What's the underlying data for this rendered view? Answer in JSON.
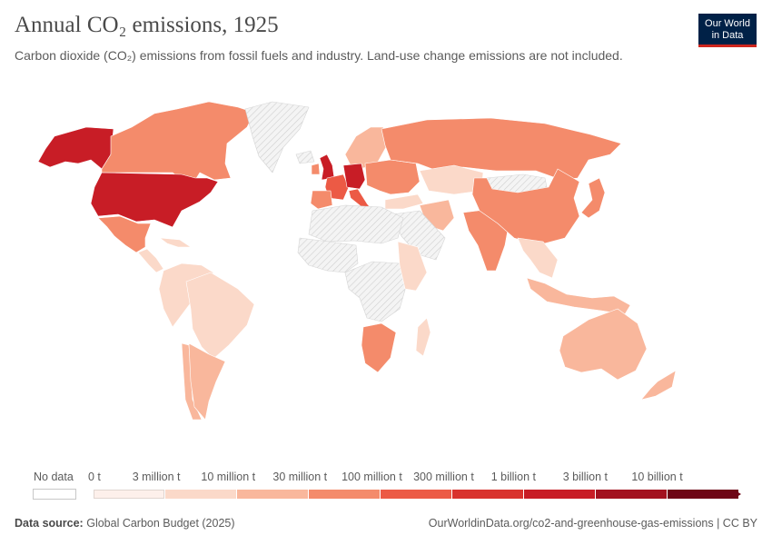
{
  "header": {
    "title": "Annual CO₂ emissions, 1925",
    "subtitle": "Carbon dioxide (CO₂) emissions from fossil fuels and industry. Land-use change emissions are not included.",
    "logo_line1": "Our World",
    "logo_line2": "in Data"
  },
  "legend": {
    "no_data_label": "No data",
    "bins": [
      {
        "label": "0 t",
        "color": "#fdf0eb"
      },
      {
        "label": "3 million t",
        "color": "#fbd9c9"
      },
      {
        "label": "10 million t",
        "color": "#f9b79c"
      },
      {
        "label": "30 million t",
        "color": "#f48b6b"
      },
      {
        "label": "100 million t",
        "color": "#ec5a45"
      },
      {
        "label": "300 million t",
        "color": "#d9322d"
      },
      {
        "label": "1 billion t",
        "color": "#c81d26"
      },
      {
        "label": "3 billion t",
        "color": "#a3111f"
      },
      {
        "label": "10 billion t",
        "color": "#6e0616"
      }
    ]
  },
  "map": {
    "regions": [
      {
        "name": "alaska",
        "color": "#c81d26"
      },
      {
        "name": "canada",
        "color": "#f48b6b"
      },
      {
        "name": "greenland",
        "color": "none"
      },
      {
        "name": "usa",
        "color": "#c81d26"
      },
      {
        "name": "mexico",
        "color": "#f48b6b"
      },
      {
        "name": "central-america",
        "color": "#fbd9c9"
      },
      {
        "name": "caribbean",
        "color": "#fbd9c9"
      },
      {
        "name": "south-america-north",
        "color": "#fbd9c9"
      },
      {
        "name": "brazil",
        "color": "#fbd9c9"
      },
      {
        "name": "chile",
        "color": "#f9b79c"
      },
      {
        "name": "argentina",
        "color": "#f9b79c"
      },
      {
        "name": "uk",
        "color": "#c81d26"
      },
      {
        "name": "ireland",
        "color": "#f48b6b"
      },
      {
        "name": "iceland",
        "color": "none"
      },
      {
        "name": "scandinavia",
        "color": "#f9b79c"
      },
      {
        "name": "france",
        "color": "#ec5a45"
      },
      {
        "name": "germany",
        "color": "#c81d26"
      },
      {
        "name": "iberia",
        "color": "#f48b6b"
      },
      {
        "name": "italy",
        "color": "#ec5a45"
      },
      {
        "name": "eastern-europe",
        "color": "#f48b6b"
      },
      {
        "name": "russia",
        "color": "#f48b6b"
      },
      {
        "name": "kazakhstan",
        "color": "#fbd9c9"
      },
      {
        "name": "turkey",
        "color": "#fbd9c9"
      },
      {
        "name": "iran",
        "color": "#f9b79c"
      },
      {
        "name": "arabia",
        "color": "none"
      },
      {
        "name": "north-africa",
        "color": "none"
      },
      {
        "name": "west-africa",
        "color": "none"
      },
      {
        "name": "central-africa",
        "color": "none"
      },
      {
        "name": "east-africa",
        "color": "#fbd9c9"
      },
      {
        "name": "south-africa",
        "color": "#f48b6b"
      },
      {
        "name": "madagascar",
        "color": "#fbd9c9"
      },
      {
        "name": "india",
        "color": "#f48b6b"
      },
      {
        "name": "mongolia",
        "color": "none"
      },
      {
        "name": "china",
        "color": "#f48b6b"
      },
      {
        "name": "japan",
        "color": "#f48b6b"
      },
      {
        "name": "southeast-asia",
        "color": "#fbd9c9"
      },
      {
        "name": "indonesia",
        "color": "#f9b79c"
      },
      {
        "name": "australia",
        "color": "#f9b79c"
      },
      {
        "name": "new-zealand",
        "color": "#f9b79c"
      }
    ]
  },
  "footer": {
    "source_prefix": "Data source:",
    "source_text": "Global Carbon Budget (2025)",
    "url_text": "OurWorldinData.org/co2-and-greenhouse-gas-emissions | CC BY"
  }
}
